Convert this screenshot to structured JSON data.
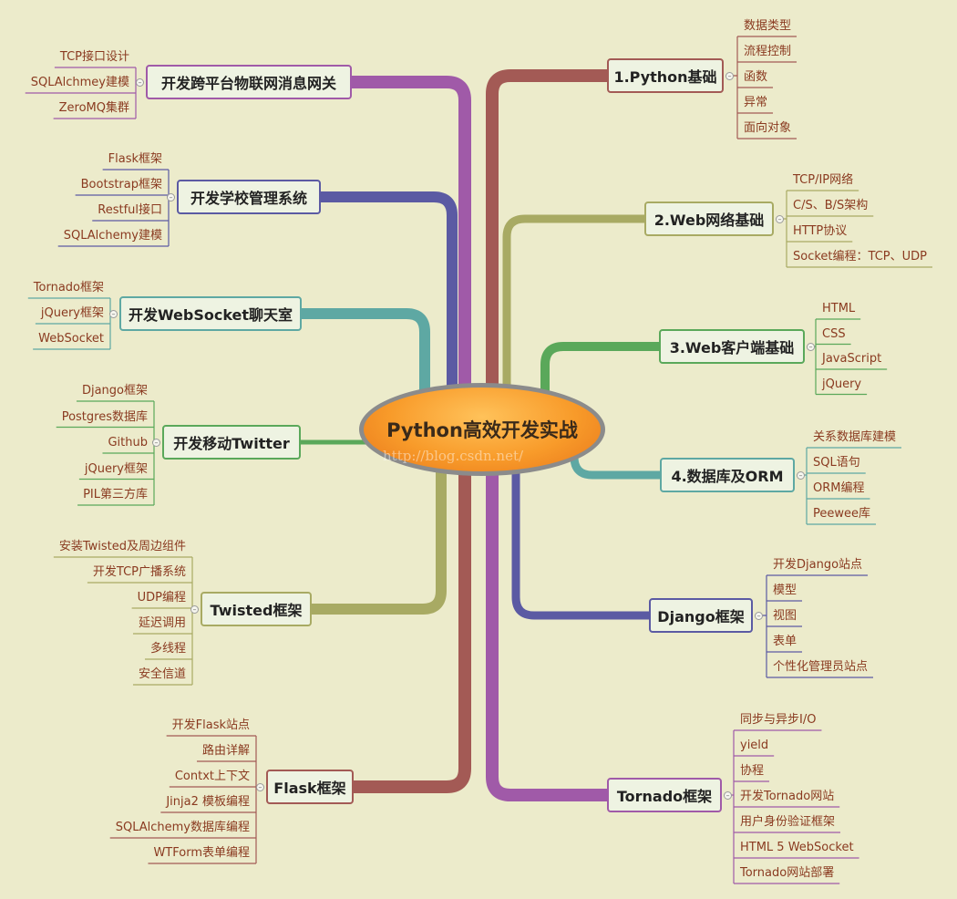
{
  "center": {
    "title": "Python高效开发实战",
    "watermark": "http://blog.csdn.net/"
  },
  "right": [
    {
      "title": "1.Python基础",
      "color": "#a35a55",
      "items": [
        "数据类型",
        "流程控制",
        "函数",
        "异常",
        "面向对象"
      ]
    },
    {
      "title": "2.Web网络基础",
      "color": "#a8aa63",
      "items": [
        "TCP/IP网络",
        "C/S、B/S架构",
        "HTTP协议",
        "Socket编程：TCP、UDP"
      ]
    },
    {
      "title": "3.Web客户端基础",
      "color": "#5aa85a",
      "items": [
        "HTML",
        "CSS",
        "JavaScript",
        "jQuery"
      ]
    },
    {
      "title": "4.数据库及ORM",
      "color": "#5ea8a3",
      "items": [
        "关系数据库建模",
        "SQL语句",
        "ORM编程",
        "Peewee库"
      ]
    },
    {
      "title": "Django框架",
      "color": "#5b5aa3",
      "items": [
        "开发Django站点",
        "模型",
        "视图",
        "表单",
        "个性化管理员站点"
      ]
    },
    {
      "title": "Tornado框架",
      "color": "#a05aa8",
      "items": [
        "同步与异步I/O",
        "yield",
        "协程",
        "开发Tornado网站",
        "用户身份验证框架",
        "HTML 5 WebSocket",
        "Tornado网站部署"
      ]
    }
  ],
  "left": [
    {
      "title": "开发跨平台物联网消息网关",
      "color": "#a05aa8",
      "items": [
        "TCP接口设计",
        "SQLAlchmey建模",
        "ZeroMQ集群"
      ]
    },
    {
      "title": "开发学校管理系统",
      "color": "#5b5aa3",
      "items": [
        "Flask框架",
        "Bootstrap框架",
        "Restful接口",
        "SQLAlchemy建模"
      ]
    },
    {
      "title": "开发WebSocket聊天室",
      "color": "#5ea8a3",
      "items": [
        "Tornado框架",
        "jQuery框架",
        "WebSocket"
      ]
    },
    {
      "title": "开发移动Twitter",
      "color": "#5aa85a",
      "items": [
        "Django框架",
        "Postgres数据库",
        "Github",
        "jQuery框架",
        "PIL第三方库"
      ]
    },
    {
      "title": "Twisted框架",
      "color": "#a8aa63",
      "items": [
        "安装Twisted及周边组件",
        "开发TCP广播系统",
        "UDP编程",
        "延迟调用",
        "多线程",
        "安全信道"
      ]
    },
    {
      "title": "Flask框架",
      "color": "#a35a55",
      "items": [
        "开发Flask站点",
        "路由详解",
        "Contxt上下文",
        "Jinja2 模板编程",
        "SQLAlchemy数据库编程",
        "WTForm表单编程"
      ]
    }
  ]
}
